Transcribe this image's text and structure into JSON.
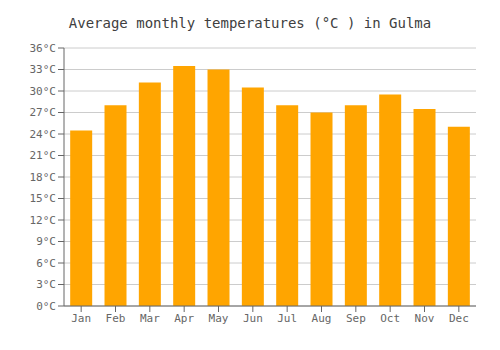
{
  "chart_data": {
    "type": "bar",
    "title": "Average monthly temperatures (°C ) in Gulma",
    "categories": [
      "Jan",
      "Feb",
      "Mar",
      "Apr",
      "May",
      "Jun",
      "Jul",
      "Aug",
      "Sep",
      "Oct",
      "Nov",
      "Dec"
    ],
    "values": [
      24.5,
      28.0,
      31.2,
      33.5,
      33.0,
      30.5,
      28.0,
      27.0,
      28.0,
      29.5,
      27.5,
      25.0
    ],
    "color": "#FFA500",
    "ylim": [
      0,
      36
    ],
    "yticks": [
      {
        "value": 0,
        "label": "0°C"
      },
      {
        "value": 3,
        "label": "3°C"
      },
      {
        "value": 6,
        "label": "6°C"
      },
      {
        "value": 9,
        "label": "9°C"
      },
      {
        "value": 12,
        "label": "12°C"
      },
      {
        "value": 15,
        "label": "15°C"
      },
      {
        "value": 18,
        "label": "18°C"
      },
      {
        "value": 21,
        "label": "21°C"
      },
      {
        "value": 24,
        "label": "24°C"
      },
      {
        "value": 27,
        "label": "27°C"
      },
      {
        "value": 30,
        "label": "30°C"
      },
      {
        "value": 33,
        "label": "33°C"
      },
      {
        "value": 36,
        "label": "36°C"
      }
    ],
    "grid": true
  }
}
